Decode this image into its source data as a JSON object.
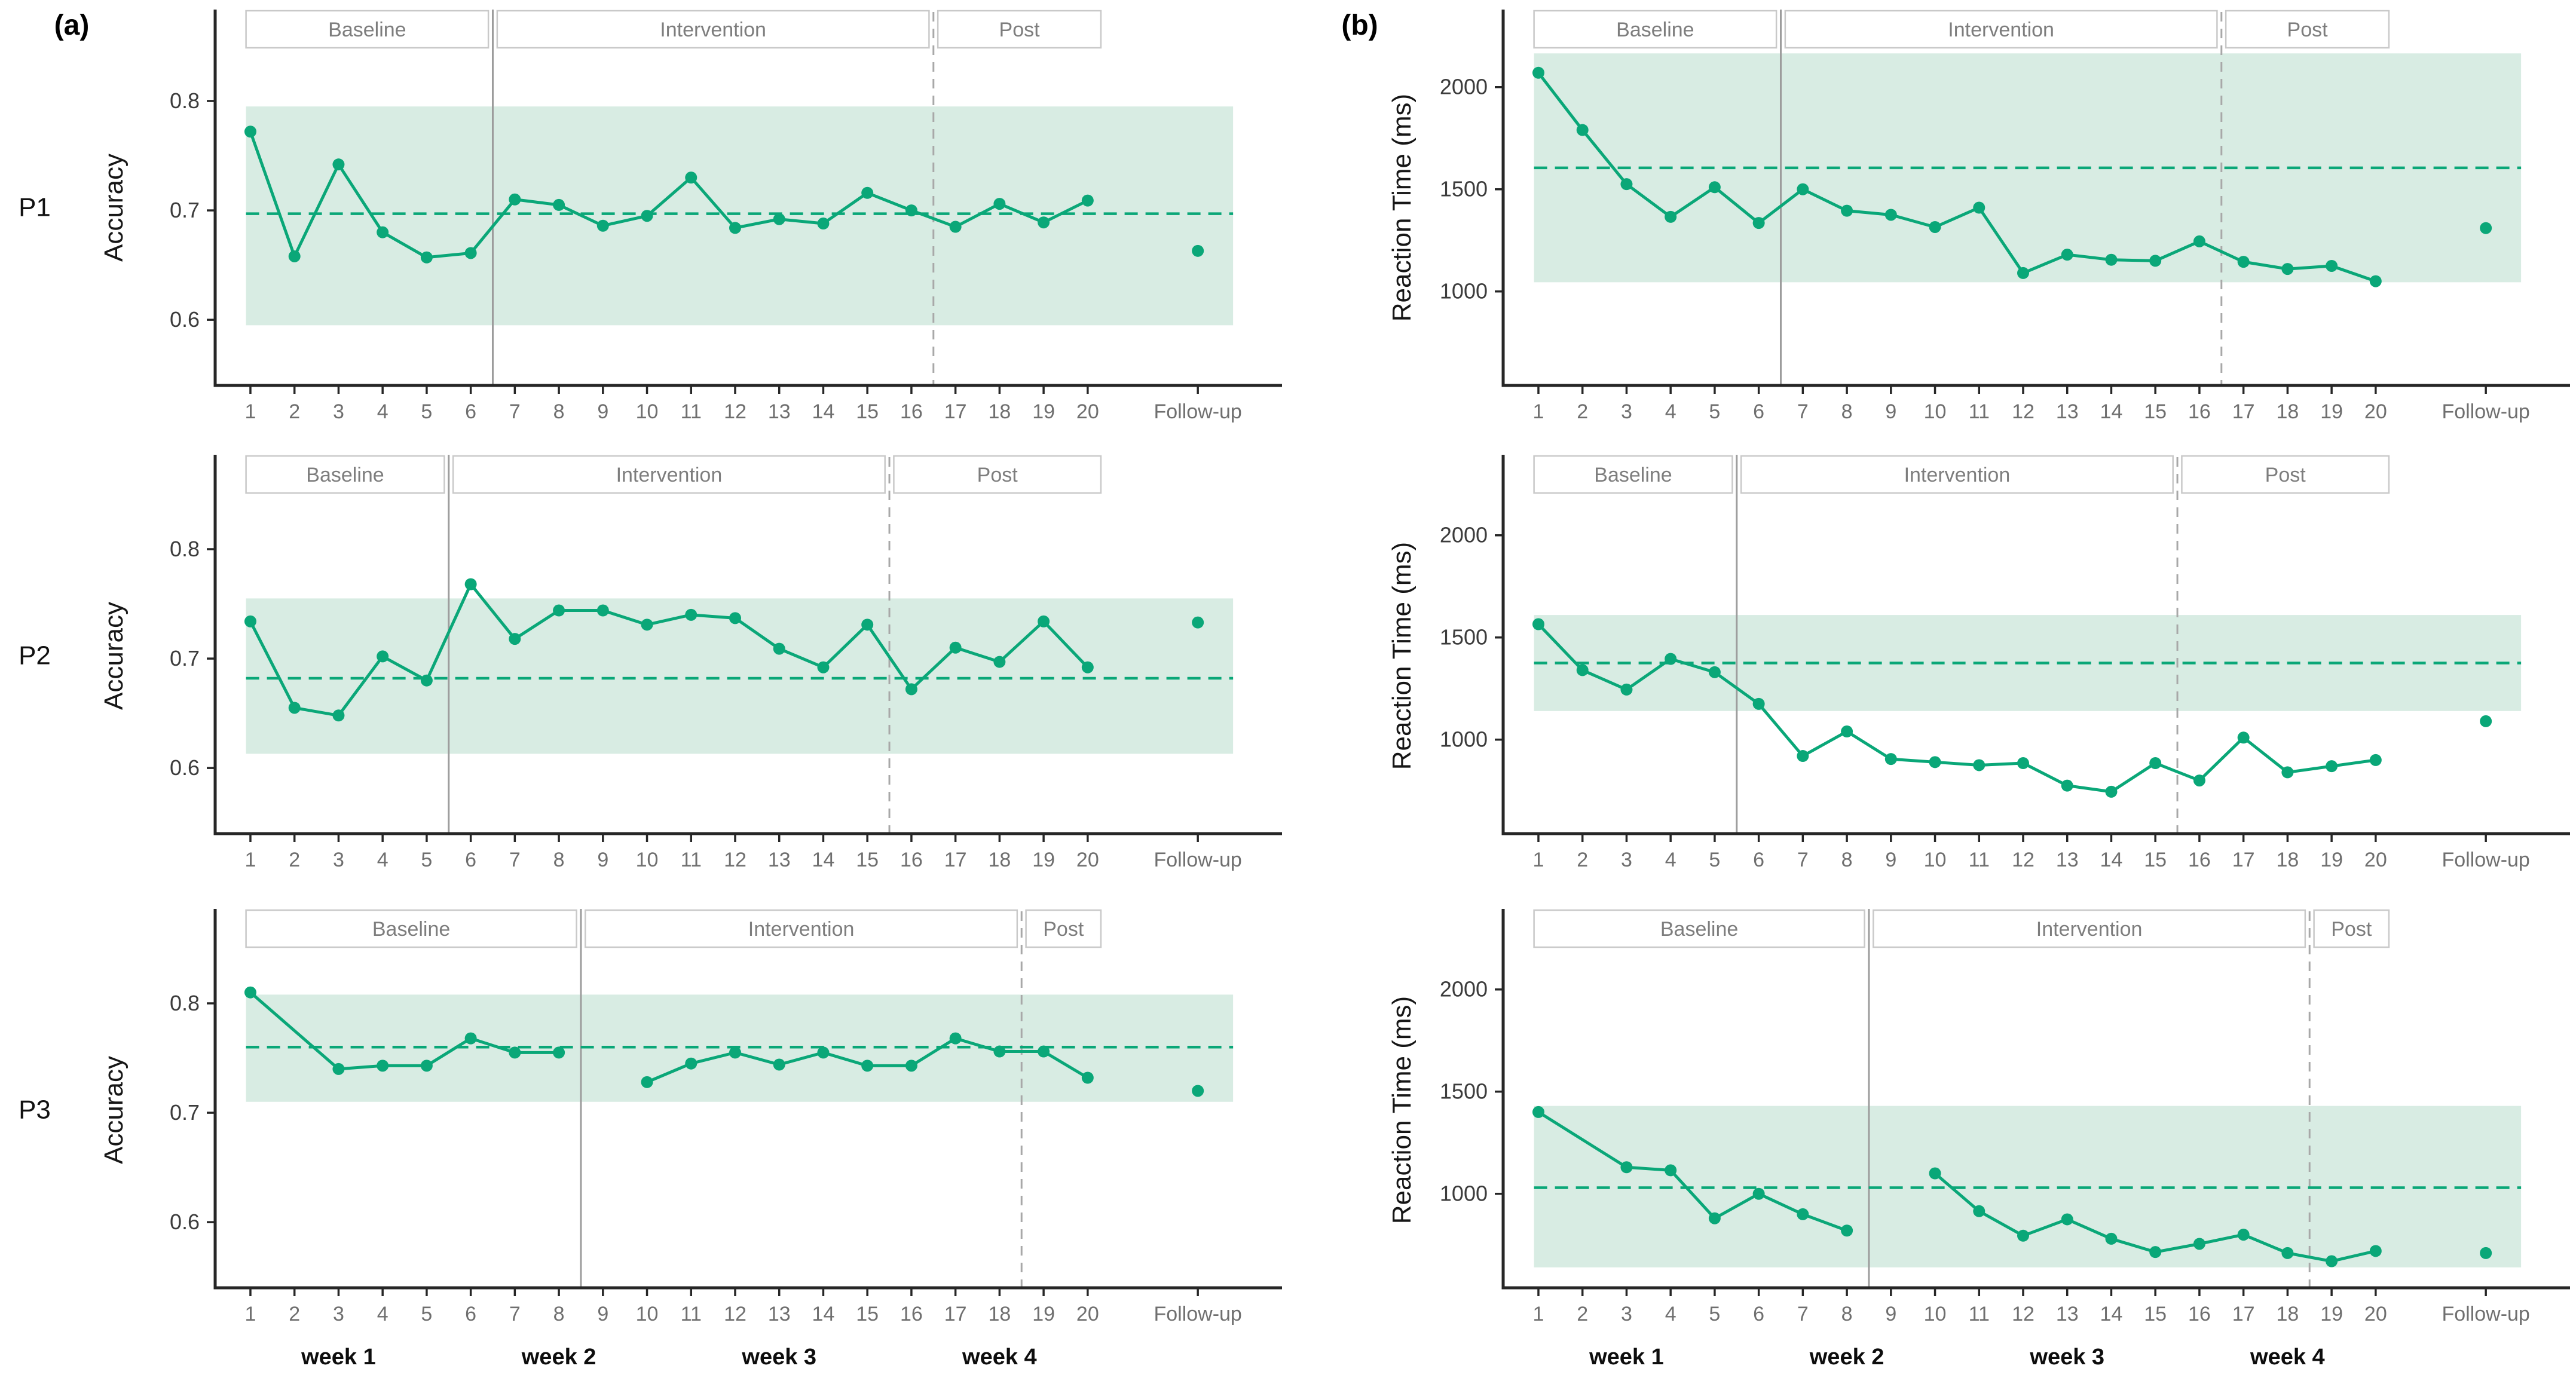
{
  "chart_data": {
    "type": "line",
    "description": "Multiple-baseline single-case design: Accuracy (a) and Reaction Time (b) across sessions for participants P1, P2, P3 with Baseline / Intervention / Post phases and Follow-up point",
    "colors": {
      "series_green": "#0aa778",
      "band_fill": "#d8ece3",
      "box_border": "#c9c9c9",
      "box_text": "#7d7d7d",
      "solid_vline": "#9c9c9c",
      "dashed_vline": "#a8a8a8",
      "axis": "#262626",
      "x_tick_text": "#6f6f6f",
      "y_tick_text": "#3c3c3c",
      "week_text": "#0d0d0d",
      "participant_text": "#111111",
      "background": "#ffffff"
    },
    "x_axis": {
      "sessions": [
        1,
        2,
        3,
        4,
        5,
        6,
        7,
        8,
        9,
        10,
        11,
        12,
        13,
        14,
        15,
        16,
        17,
        18,
        19,
        20
      ],
      "followup_x": 22.5,
      "followup_label": "Follow-up",
      "xmin": 0.2,
      "xmax": 23.8,
      "band_x0": 0.9,
      "band_x1": 23.3
    },
    "week_labels": [
      {
        "label": "week 1",
        "x": 3
      },
      {
        "label": "week 2",
        "x": 8
      },
      {
        "label": "week 3",
        "x": 13
      },
      {
        "label": "week 4",
        "x": 18
      }
    ],
    "columns": [
      {
        "id": "a",
        "letter": "(a)",
        "ylabel": "Accuracy",
        "ymin": 0.54,
        "ymax": 0.865,
        "yticks": [
          {
            "v": 0.6,
            "label": "0.6"
          },
          {
            "v": 0.7,
            "label": "0.7"
          },
          {
            "v": 0.8,
            "label": "0.8"
          }
        ]
      },
      {
        "id": "b",
        "letter": "(b)",
        "ylabel": "Reaction Time (ms)",
        "ymin": 540,
        "ymax": 2280,
        "yticks": [
          {
            "v": 1000,
            "label": "1000"
          },
          {
            "v": 1500,
            "label": "1500"
          },
          {
            "v": 2000,
            "label": "2000"
          }
        ]
      }
    ],
    "rows": [
      {
        "participant": "P1",
        "solid_separator_x": 6.5,
        "dashed_separator_x": 16.5,
        "phase_boxes": [
          {
            "label": "Baseline",
            "x0": 0.9,
            "x1": 6.4
          },
          {
            "label": "Intervention",
            "x0": 6.6,
            "x1": 16.4
          },
          {
            "label": "Post",
            "x0": 16.6,
            "x1": 20.3
          }
        ]
      },
      {
        "participant": "P2",
        "solid_separator_x": 5.5,
        "dashed_separator_x": 15.5,
        "phase_boxes": [
          {
            "label": "Baseline",
            "x0": 0.9,
            "x1": 5.4
          },
          {
            "label": "Intervention",
            "x0": 5.6,
            "x1": 15.4
          },
          {
            "label": "Post",
            "x0": 15.6,
            "x1": 20.3
          }
        ]
      },
      {
        "participant": "P3",
        "solid_separator_x": 8.5,
        "dashed_separator_x": 18.5,
        "phase_boxes": [
          {
            "label": "Baseline",
            "x0": 0.9,
            "x1": 8.4
          },
          {
            "label": "Intervention",
            "x0": 8.6,
            "x1": 18.4
          },
          {
            "label": "Post",
            "x0": 18.6,
            "x1": 20.3
          }
        ]
      }
    ],
    "panels": [
      {
        "id": "a-p1",
        "col": 0,
        "row": 0,
        "points": [
          [
            1,
            0.772
          ],
          [
            2,
            0.658
          ],
          [
            3,
            0.742
          ],
          [
            4,
            0.68
          ],
          [
            5,
            0.657
          ],
          [
            6,
            0.661
          ],
          [
            7,
            0.71
          ],
          [
            8,
            0.705
          ],
          [
            9,
            0.686
          ],
          [
            10,
            0.695
          ],
          [
            11,
            0.73
          ],
          [
            12,
            0.684
          ],
          [
            13,
            0.692
          ],
          [
            14,
            0.688
          ],
          [
            15,
            0.716
          ],
          [
            16,
            0.7
          ],
          [
            17,
            0.685
          ],
          [
            18,
            0.706
          ],
          [
            19,
            0.689
          ],
          [
            20,
            0.709
          ]
        ],
        "followup": 0.663,
        "mean": 0.697,
        "band": [
          0.595,
          0.795
        ]
      },
      {
        "id": "b-p1",
        "col": 1,
        "row": 0,
        "points": [
          [
            1,
            2070
          ],
          [
            2,
            1790
          ],
          [
            3,
            1525
          ],
          [
            4,
            1365
          ],
          [
            5,
            1510
          ],
          [
            6,
            1335
          ],
          [
            7,
            1500
          ],
          [
            8,
            1395
          ],
          [
            9,
            1375
          ],
          [
            10,
            1315
          ],
          [
            11,
            1410
          ],
          [
            12,
            1090
          ],
          [
            13,
            1180
          ],
          [
            14,
            1155
          ],
          [
            15,
            1150
          ],
          [
            16,
            1245
          ],
          [
            17,
            1145
          ],
          [
            18,
            1110
          ],
          [
            19,
            1125
          ],
          [
            20,
            1050
          ]
        ],
        "followup": 1310,
        "mean": 1605,
        "band": [
          1045,
          2165
        ]
      },
      {
        "id": "a-p2",
        "col": 0,
        "row": 1,
        "points": [
          [
            1,
            0.734
          ],
          [
            2,
            0.655
          ],
          [
            3,
            0.648
          ],
          [
            4,
            0.702
          ],
          [
            5,
            0.68
          ],
          [
            6,
            0.768
          ],
          [
            7,
            0.718
          ],
          [
            8,
            0.744
          ],
          [
            9,
            0.744
          ],
          [
            10,
            0.731
          ],
          [
            11,
            0.74
          ],
          [
            12,
            0.737
          ],
          [
            13,
            0.709
          ],
          [
            14,
            0.692
          ],
          [
            15,
            0.731
          ],
          [
            16,
            0.672
          ],
          [
            17,
            0.71
          ],
          [
            18,
            0.697
          ],
          [
            19,
            0.734
          ],
          [
            20,
            0.692
          ]
        ],
        "followup": 0.733,
        "mean": 0.682,
        "band": [
          0.613,
          0.755
        ]
      },
      {
        "id": "b-p2",
        "col": 1,
        "row": 1,
        "points": [
          [
            1,
            1565
          ],
          [
            2,
            1340
          ],
          [
            3,
            1245
          ],
          [
            4,
            1395
          ],
          [
            5,
            1330
          ],
          [
            6,
            1175
          ],
          [
            7,
            920
          ],
          [
            8,
            1040
          ],
          [
            9,
            905
          ],
          [
            10,
            890
          ],
          [
            11,
            875
          ],
          [
            12,
            885
          ],
          [
            13,
            775
          ],
          [
            14,
            745
          ],
          [
            15,
            885
          ],
          [
            16,
            800
          ],
          [
            17,
            1010
          ],
          [
            18,
            840
          ],
          [
            19,
            870
          ],
          [
            20,
            900
          ]
        ],
        "followup": 1090,
        "mean": 1375,
        "band": [
          1140,
          1610
        ]
      },
      {
        "id": "a-p3",
        "col": 0,
        "row": 2,
        "points": [
          [
            1,
            0.81
          ],
          [
            3,
            0.74
          ],
          [
            4,
            0.743
          ],
          [
            5,
            0.743
          ],
          [
            6,
            0.768
          ],
          [
            7,
            0.755
          ],
          [
            8,
            0.755
          ],
          null,
          [
            10,
            0.728
          ],
          [
            11,
            0.745
          ],
          [
            12,
            0.755
          ],
          [
            13,
            0.744
          ],
          [
            14,
            0.755
          ],
          [
            15,
            0.743
          ],
          [
            16,
            0.743
          ],
          [
            17,
            0.768
          ],
          [
            18,
            0.756
          ],
          [
            19,
            0.756
          ],
          [
            20,
            0.732
          ]
        ],
        "followup": 0.72,
        "mean": 0.76,
        "band": [
          0.71,
          0.808
        ]
      },
      {
        "id": "b-p3",
        "col": 1,
        "row": 2,
        "points": [
          [
            1,
            1400
          ],
          [
            3,
            1130
          ],
          [
            4,
            1115
          ],
          [
            5,
            880
          ],
          [
            6,
            1000
          ],
          [
            7,
            900
          ],
          [
            8,
            820
          ],
          null,
          [
            10,
            1100
          ],
          [
            11,
            915
          ],
          [
            12,
            795
          ],
          [
            13,
            875
          ],
          [
            14,
            780
          ],
          [
            15,
            715
          ],
          [
            16,
            755
          ],
          [
            17,
            800
          ],
          [
            18,
            710
          ],
          [
            19,
            670
          ],
          [
            20,
            720
          ]
        ],
        "followup": 710,
        "mean": 1030,
        "band": [
          640,
          1430
        ]
      }
    ]
  }
}
